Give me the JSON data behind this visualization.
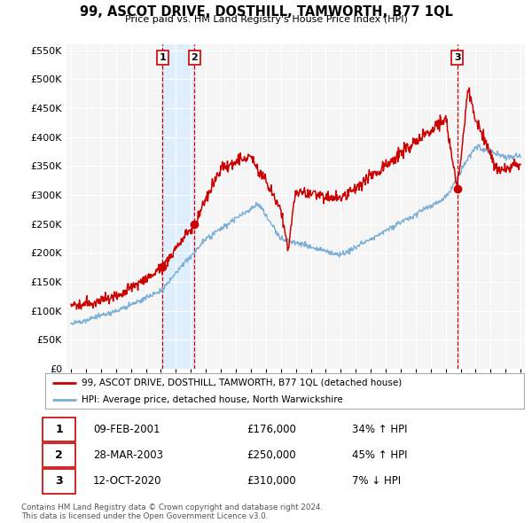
{
  "title": "99, ASCOT DRIVE, DOSTHILL, TAMWORTH, B77 1QL",
  "subtitle": "Price paid vs. HM Land Registry's House Price Index (HPI)",
  "ylim": [
    0,
    560000
  ],
  "yticks": [
    0,
    50000,
    100000,
    150000,
    200000,
    250000,
    300000,
    350000,
    400000,
    450000,
    500000,
    550000
  ],
  "xlim_start": 1994.7,
  "xlim_end": 2025.3,
  "background_color": "#ffffff",
  "plot_bg_color": "#f5f5f5",
  "grid_color": "#ffffff",
  "hpi_color": "#7bafd4",
  "hpi_fill_color": "#c8dff0",
  "price_color": "#cc0000",
  "vline_color": "#cc0000",
  "shade_color": "#ddeeff",
  "transactions": [
    {
      "id": 1,
      "date_num": 2001.1,
      "price": 176000
    },
    {
      "id": 2,
      "date_num": 2003.23,
      "price": 250000
    },
    {
      "id": 3,
      "date_num": 2020.78,
      "price": 310000
    }
  ],
  "legend_entries": [
    "99, ASCOT DRIVE, DOSTHILL, TAMWORTH, B77 1QL (detached house)",
    "HPI: Average price, detached house, North Warwickshire"
  ],
  "footnote1": "Contains HM Land Registry data © Crown copyright and database right 2024.",
  "footnote2": "This data is licensed under the Open Government Licence v3.0.",
  "table_rows": [
    {
      "id": 1,
      "date": "09-FEB-2001",
      "price": "£176,000",
      "pct": "34% ↑ HPI"
    },
    {
      "id": 2,
      "date": "28-MAR-2003",
      "price": "£250,000",
      "pct": "45% ↑ HPI"
    },
    {
      "id": 3,
      "date": "12-OCT-2020",
      "price": "£310,000",
      "pct": "7% ↓ HPI"
    }
  ]
}
